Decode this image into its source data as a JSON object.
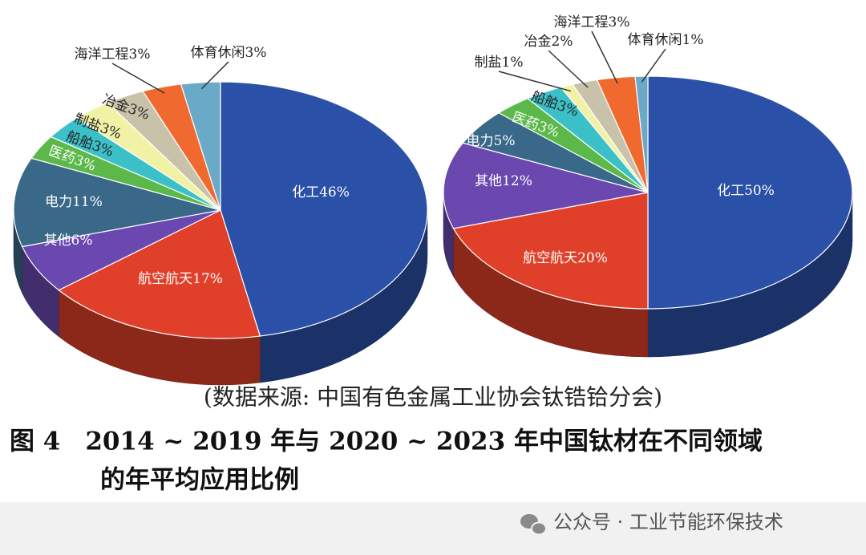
{
  "chart_data": [
    {
      "type": "pie",
      "categories": [
        "化工",
        "航空航天",
        "其他",
        "电力",
        "医药",
        "船舶",
        "制盐",
        "冶金",
        "海洋工程",
        "体育休闲"
      ],
      "values": [
        46,
        17,
        6,
        11,
        3,
        3,
        3,
        3,
        3,
        3
      ],
      "value_labels": [
        "46%",
        "17%",
        "6%",
        "11%",
        "3%",
        "3%",
        "3%",
        "3%",
        "3%",
        "3%"
      ],
      "colors": [
        "#2b50a8",
        "#e0402a",
        "#6a48b0",
        "#3a6888",
        "#5cb84a",
        "#3cc0c8",
        "#f2f2a6",
        "#c9c2aa",
        "#f06a30",
        "#6aaac8"
      ]
    },
    {
      "type": "pie",
      "categories": [
        "化工",
        "航空航天",
        "其他",
        "电力",
        "医药",
        "船舶",
        "制盐",
        "冶金",
        "海洋工程",
        "体育休闲"
      ],
      "values": [
        50,
        20,
        12,
        5,
        3,
        3,
        1,
        2,
        3,
        1
      ],
      "value_labels": [
        "50%",
        "20%",
        "12%",
        "5%",
        "3%",
        "3%",
        "1%",
        "2%",
        "3%",
        "1%"
      ],
      "colors": [
        "#2b50a8",
        "#e0402a",
        "#6a48b0",
        "#3a6888",
        "#5cb84a",
        "#3cc0c8",
        "#f2f2a6",
        "#c9c2aa",
        "#f06a30",
        "#6aaac8"
      ]
    }
  ],
  "source": "(数据来源: 中国有色金属工业协会钛锆铪分会)",
  "caption_line1": "图 4　2014 ~ 2019 年与 2020 ~ 2023 年中国钛材在不同领域",
  "caption_line2": "的年平均应用比例",
  "watermark": "公众号 · 工业节能环保技术"
}
